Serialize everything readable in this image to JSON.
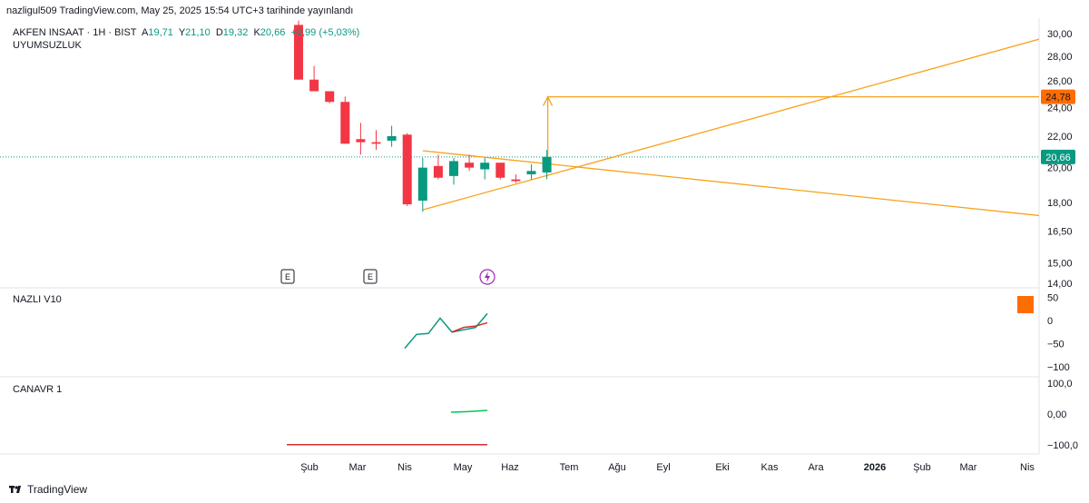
{
  "header": {
    "published": "nazligul509 TradingView.com, May 25, 2025 15:54 UTC+3 tarihinde yayınlandı"
  },
  "symbol": {
    "name": "AKFEN INSAAT · 1H · BIST",
    "ohlc": {
      "open_label": "A",
      "open": "19,71",
      "high_label": "Y",
      "high": "21,10",
      "low_label": "D",
      "low": "19,32",
      "close_label": "K",
      "close": "20,66",
      "change": "+0,99 (+5,03%)"
    },
    "study": "UYUMSUZLUK"
  },
  "panes": {
    "indicator1": "NAZLI V10",
    "indicator2": "CANAVR 1"
  },
  "footer": {
    "brand": "TradingView"
  },
  "colors": {
    "up": "#089981",
    "down": "#f23645",
    "trend": "#f7a21b",
    "accent": "#ff6d00",
    "indicator_green": "#00c853",
    "indicator_red": "#d32f2f"
  },
  "chart_data": {
    "type": "candlestick",
    "x_ticks": [
      "Şub",
      "Mar",
      "Nis",
      "May",
      "Haz",
      "Tem",
      "Ağu",
      "Eyl",
      "Eki",
      "Kas",
      "Ara",
      "2026",
      "Şub",
      "Mar",
      "Nis"
    ],
    "price_axis": {
      "ticks": [
        "30,00",
        "28,00",
        "26,00",
        "24,00",
        "22,00",
        "20,00",
        "18,00",
        "16,50",
        "15,00",
        "14,00"
      ],
      "scale": "log"
    },
    "badges": {
      "target": "24,78",
      "last": "20,66"
    },
    "candles": [
      {
        "o": 30.8,
        "h": 31.2,
        "l": 26.1,
        "c": 26.1
      },
      {
        "o": 26.1,
        "h": 27.2,
        "l": 25.2,
        "c": 25.2
      },
      {
        "o": 25.2,
        "h": 25.2,
        "l": 24.3,
        "c": 24.4
      },
      {
        "o": 24.4,
        "h": 24.8,
        "l": 21.5,
        "c": 21.5
      },
      {
        "o": 21.8,
        "h": 22.9,
        "l": 20.8,
        "c": 21.6
      },
      {
        "o": 21.6,
        "h": 22.4,
        "l": 21.1,
        "c": 21.5
      },
      {
        "o": 21.7,
        "h": 22.7,
        "l": 21.3,
        "c": 22.0
      },
      {
        "o": 22.1,
        "h": 22.2,
        "l": 17.8,
        "c": 17.9
      },
      {
        "o": 18.1,
        "h": 20.6,
        "l": 17.5,
        "c": 20.0
      },
      {
        "o": 20.1,
        "h": 20.8,
        "l": 19.3,
        "c": 19.4
      },
      {
        "o": 19.5,
        "h": 20.6,
        "l": 19.0,
        "c": 20.4
      },
      {
        "o": 20.3,
        "h": 20.8,
        "l": 19.8,
        "c": 20.0
      },
      {
        "o": 19.9,
        "h": 20.6,
        "l": 19.3,
        "c": 20.3
      },
      {
        "o": 20.3,
        "h": 20.3,
        "l": 19.3,
        "c": 19.4
      },
      {
        "o": 19.3,
        "h": 19.6,
        "l": 19.1,
        "c": 19.2
      },
      {
        "o": 19.6,
        "h": 20.2,
        "l": 19.3,
        "c": 19.8
      },
      {
        "o": 19.71,
        "h": 21.1,
        "l": 19.32,
        "c": 20.66
      }
    ],
    "trendlines": [
      {
        "name": "upper-trendline",
        "from": {
          "i": 8,
          "y": 21.05
        },
        "to": {
          "i": "end",
          "y": 17.3
        }
      },
      {
        "name": "lower-trendline",
        "from": {
          "i": 8,
          "y": 17.6
        },
        "to": {
          "i": "end",
          "y": 29.5
        }
      }
    ],
    "target_level": 24.78,
    "events": [
      "E",
      "E"
    ],
    "indicator1": {
      "ticks": [
        "50",
        "0",
        "−50",
        "−100"
      ],
      "series": [
        {
          "values": [
            -60,
            -30,
            -28,
            5,
            -25,
            -20,
            -15,
            15
          ]
        },
        {
          "values": [
            null,
            null,
            null,
            null,
            -25,
            -15,
            -12,
            -5
          ]
        }
      ]
    },
    "indicator2": {
      "ticks": [
        "100,0",
        "0,00",
        "−100,0"
      ],
      "series": [
        {
          "values": [
            6,
            8,
            12
          ]
        },
        {
          "values": [
            -100,
            -100
          ]
        }
      ]
    }
  }
}
